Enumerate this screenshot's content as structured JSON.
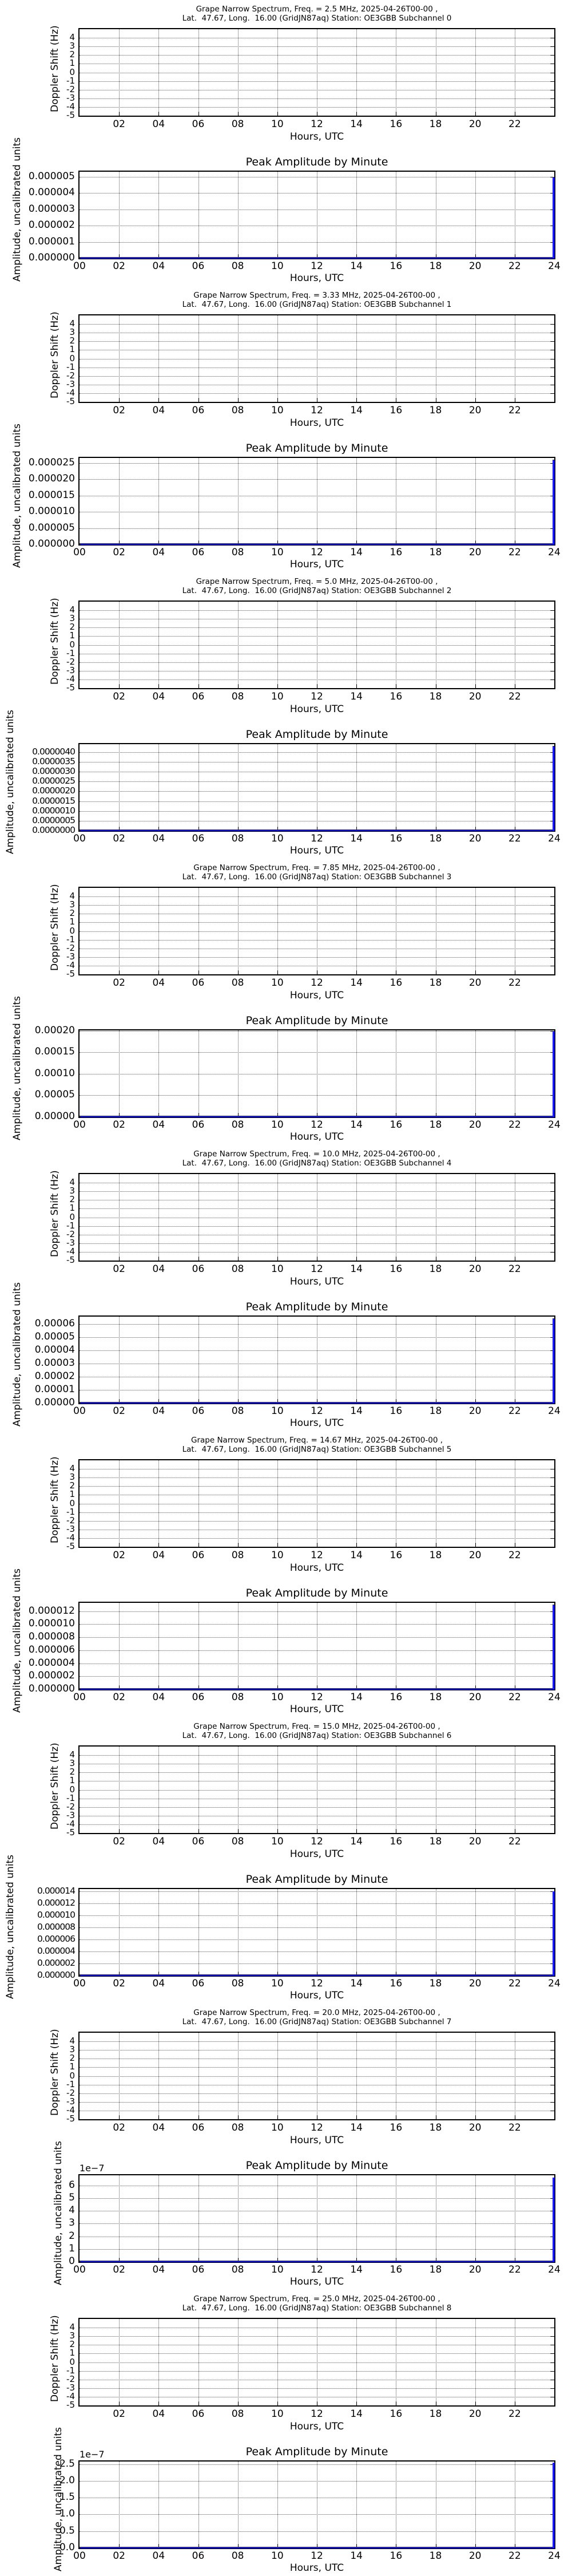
{
  "common": {
    "location_line": "Lat.  47.67, Long.  16.00 (GridJN87aq) Station: OE3GBB Subchannel ",
    "doppler_ylabel": "Doppler Shift (Hz)",
    "amp_ylabel": "Amplitude, uncalibrated units",
    "amp_title": "Peak Amplitude by Minute",
    "xlabel": "Hours, UTC",
    "doppler_xticks": [
      "02",
      "04",
      "06",
      "08",
      "10",
      "12",
      "14",
      "16",
      "18",
      "20",
      "22"
    ],
    "amp_xticks": [
      "00",
      "02",
      "04",
      "06",
      "08",
      "10",
      "12",
      "14",
      "16",
      "18",
      "20",
      "22",
      "24"
    ],
    "doppler_yticks": [
      "4",
      "3",
      "2",
      "1",
      "0",
      "-1",
      "-2",
      "-3",
      "-4",
      "-5"
    ],
    "line_color": "#1a1aff"
  },
  "panels": [
    {
      "title_line1": "Grape Narrow Spectrum, Freq. = 2.5 MHz, 2025-04-26T00-00 ,",
      "title_line2": "Lat.  47.67, Long.  16.00 (GridJN87aq) Station: OE3GBB Subchannel 0",
      "amp_yticks": [
        "0.000005",
        "0.000004",
        "0.000003",
        "0.000002",
        "0.000001",
        "0.000000"
      ],
      "amp_offset": "",
      "amp_ymax": 5.3e-06,
      "amp_peak": 5e-06
    },
    {
      "title_line1": "Grape Narrow Spectrum, Freq. = 3.33 MHz, 2025-04-26T00-00 ,",
      "title_line2": "Lat.  47.67, Long.  16.00 (GridJN87aq) Station: OE3GBB Subchannel 1",
      "amp_yticks": [
        "0.000025",
        "0.000020",
        "0.000015",
        "0.000010",
        "0.000005",
        "0.000000"
      ],
      "amp_offset": "",
      "amp_ymax": 2.65e-05,
      "amp_peak": 2.6e-05
    },
    {
      "title_line1": "Grape Narrow Spectrum, Freq. = 5.0 MHz, 2025-04-26T00-00 ,",
      "title_line2": "Lat.  47.67, Long.  16.00 (GridJN87aq) Station: OE3GBB Subchannel 2",
      "amp_yticks": [
        "0.0000040",
        "0.0000035",
        "0.0000030",
        "0.0000025",
        "0.0000020",
        "0.0000015",
        "0.0000010",
        "0.0000005",
        "0.0000000"
      ],
      "amp_offset": "",
      "amp_ymax": 4.4e-06,
      "amp_peak": 4.3e-06
    },
    {
      "title_line1": "Grape Narrow Spectrum, Freq. = 7.85 MHz, 2025-04-26T00-00 ,",
      "title_line2": "Lat.  47.67, Long.  16.00 (GridJN87aq) Station: OE3GBB Subchannel 3",
      "amp_yticks": [
        "0.00020",
        "0.00015",
        "0.00010",
        "0.00005",
        "0.00000"
      ],
      "amp_offset": "",
      "amp_ymax": 0.000201,
      "amp_peak": 0.0002
    },
    {
      "title_line1": "Grape Narrow Spectrum, Freq. = 10.0 MHz, 2025-04-26T00-00 ,",
      "title_line2": "Lat.  47.67, Long.  16.00 (GridJN87aq) Station: OE3GBB Subchannel 4",
      "amp_yticks": [
        "0.00006",
        "0.00005",
        "0.00004",
        "0.00003",
        "0.00002",
        "0.00001",
        "0.00000"
      ],
      "amp_offset": "",
      "amp_ymax": 6.55e-05,
      "amp_peak": 6.4e-05
    },
    {
      "title_line1": "Grape Narrow Spectrum, Freq. = 14.67 MHz, 2025-04-26T00-00 ,",
      "title_line2": "Lat.  47.67, Long.  16.00 (GridJN87aq) Station: OE3GBB Subchannel 5",
      "amp_yticks": [
        "0.000012",
        "0.000010",
        "0.000008",
        "0.000006",
        "0.000004",
        "0.000002",
        "0.000000"
      ],
      "amp_offset": "",
      "amp_ymax": 1.33e-05,
      "amp_peak": 1.3e-05
    },
    {
      "title_line1": "Grape Narrow Spectrum, Freq. = 15.0 MHz, 2025-04-26T00-00 ,",
      "title_line2": "Lat.  47.67, Long.  16.00 (GridJN87aq) Station: OE3GBB Subchannel 6",
      "amp_yticks": [
        "0.000014",
        "0.000012",
        "0.000010",
        "0.000008",
        "0.000006",
        "0.000004",
        "0.000002",
        "0.000000"
      ],
      "amp_offset": "",
      "amp_ymax": 1.44e-05,
      "amp_peak": 1.4e-05
    },
    {
      "title_line1": "Grape Narrow Spectrum, Freq. = 20.0 MHz, 2025-04-26T00-00 ,",
      "title_line2": "Lat.  47.67, Long.  16.00 (GridJN87aq) Station: OE3GBB Subchannel 7",
      "amp_yticks": [
        "6",
        "5",
        "4",
        "3",
        "2",
        "1",
        "0"
      ],
      "amp_offset": "1e−7",
      "amp_ymax": 6.8,
      "amp_peak": 6.6
    },
    {
      "title_line1": "Grape Narrow Spectrum, Freq. = 25.0 MHz, 2025-04-26T00-00 ,",
      "title_line2": "Lat.  47.67, Long.  16.00 (GridJN87aq) Station: OE3GBB Subchannel 8",
      "amp_yticks": [
        "2.5",
        "2.0",
        "1.5",
        "1.0",
        "0.5",
        "0.0"
      ],
      "amp_offset": "1e−7",
      "amp_ymax": 2.58,
      "amp_peak": 2.55
    }
  ],
  "chart_data": [
    {
      "type": "line",
      "title": "Grape Narrow Spectrum, Freq. = 2.5 MHz, 2025-04-26T00-00 , Subchannel 0",
      "xlabel": "Hours, UTC",
      "ylabel": "Doppler Shift (Hz)",
      "ylim": [
        -5,
        5
      ],
      "xlim": [
        0,
        24
      ],
      "series": [],
      "grid": true
    },
    {
      "type": "line",
      "title": "Peak Amplitude by Minute (2.5 MHz)",
      "xlabel": "Hours, UTC",
      "ylabel": "Amplitude, uncalibrated units",
      "xlim": [
        0,
        24
      ],
      "ylim": [
        0,
        5.3e-06
      ],
      "x": [
        0,
        23.98,
        24
      ],
      "series": [
        {
          "name": "peak amplitude",
          "values": [
            0,
            0,
            5e-06
          ]
        }
      ],
      "grid": true
    },
    {
      "type": "line",
      "title": "Grape Narrow Spectrum, Freq. = 3.33 MHz, 2025-04-26T00-00 , Subchannel 1",
      "xlabel": "Hours, UTC",
      "ylabel": "Doppler Shift (Hz)",
      "ylim": [
        -5,
        5
      ],
      "xlim": [
        0,
        24
      ],
      "series": [],
      "grid": true
    },
    {
      "type": "line",
      "title": "Peak Amplitude by Minute (3.33 MHz)",
      "xlabel": "Hours, UTC",
      "ylabel": "Amplitude, uncalibrated units",
      "xlim": [
        0,
        24
      ],
      "ylim": [
        0,
        2.65e-05
      ],
      "x": [
        0,
        23.98,
        24
      ],
      "series": [
        {
          "name": "peak amplitude",
          "values": [
            0,
            0,
            2.6e-05
          ]
        }
      ],
      "grid": true
    },
    {
      "type": "line",
      "title": "Grape Narrow Spectrum, Freq. = 5.0 MHz, 2025-04-26T00-00 , Subchannel 2",
      "xlabel": "Hours, UTC",
      "ylabel": "Doppler Shift (Hz)",
      "ylim": [
        -5,
        5
      ],
      "xlim": [
        0,
        24
      ],
      "series": [],
      "grid": true
    },
    {
      "type": "line",
      "title": "Peak Amplitude by Minute (5.0 MHz)",
      "xlabel": "Hours, UTC",
      "ylabel": "Amplitude, uncalibrated units",
      "xlim": [
        0,
        24
      ],
      "ylim": [
        0,
        4.4e-06
      ],
      "x": [
        0,
        23.98,
        24
      ],
      "series": [
        {
          "name": "peak amplitude",
          "values": [
            0,
            0,
            4.3e-06
          ]
        }
      ],
      "grid": true
    },
    {
      "type": "line",
      "title": "Grape Narrow Spectrum, Freq. = 7.85 MHz, 2025-04-26T00-00 , Subchannel 3",
      "xlabel": "Hours, UTC",
      "ylabel": "Doppler Shift (Hz)",
      "ylim": [
        -5,
        5
      ],
      "xlim": [
        0,
        24
      ],
      "series": [],
      "grid": true
    },
    {
      "type": "line",
      "title": "Peak Amplitude by Minute (7.85 MHz)",
      "xlabel": "Hours, UTC",
      "ylabel": "Amplitude, uncalibrated units",
      "xlim": [
        0,
        24
      ],
      "ylim": [
        0,
        0.000201
      ],
      "x": [
        0,
        23.98,
        24
      ],
      "series": [
        {
          "name": "peak amplitude",
          "values": [
            0,
            0,
            0.0002
          ]
        }
      ],
      "grid": true
    },
    {
      "type": "line",
      "title": "Grape Narrow Spectrum, Freq. = 10.0 MHz, 2025-04-26T00-00 , Subchannel 4",
      "xlabel": "Hours, UTC",
      "ylabel": "Doppler Shift (Hz)",
      "ylim": [
        -5,
        5
      ],
      "xlim": [
        0,
        24
      ],
      "series": [],
      "grid": true
    },
    {
      "type": "line",
      "title": "Peak Amplitude by Minute (10.0 MHz)",
      "xlabel": "Hours, UTC",
      "ylabel": "Amplitude, uncalibrated units",
      "xlim": [
        0,
        24
      ],
      "ylim": [
        0,
        6.55e-05
      ],
      "x": [
        0,
        23.98,
        24
      ],
      "series": [
        {
          "name": "peak amplitude",
          "values": [
            0,
            0,
            6.4e-05
          ]
        }
      ],
      "grid": true
    },
    {
      "type": "line",
      "title": "Grape Narrow Spectrum, Freq. = 14.67 MHz, 2025-04-26T00-00 , Subchannel 5",
      "xlabel": "Hours, UTC",
      "ylabel": "Doppler Shift (Hz)",
      "ylim": [
        -5,
        5
      ],
      "xlim": [
        0,
        24
      ],
      "series": [],
      "grid": true
    },
    {
      "type": "line",
      "title": "Peak Amplitude by Minute (14.67 MHz)",
      "xlabel": "Hours, UTC",
      "ylabel": "Amplitude, uncalibrated units",
      "xlim": [
        0,
        24
      ],
      "ylim": [
        0,
        1.33e-05
      ],
      "x": [
        0,
        23.98,
        24
      ],
      "series": [
        {
          "name": "peak amplitude",
          "values": [
            0,
            0,
            1.3e-05
          ]
        }
      ],
      "grid": true
    },
    {
      "type": "line",
      "title": "Grape Narrow Spectrum, Freq. = 15.0 MHz, 2025-04-26T00-00 , Subchannel 6",
      "xlabel": "Hours, UTC",
      "ylabel": "Doppler Shift (Hz)",
      "ylim": [
        -5,
        5
      ],
      "xlim": [
        0,
        24
      ],
      "series": [],
      "grid": true
    },
    {
      "type": "line",
      "title": "Peak Amplitude by Minute (15.0 MHz)",
      "xlabel": "Hours, UTC",
      "ylabel": "Amplitude, uncalibrated units",
      "xlim": [
        0,
        24
      ],
      "ylim": [
        0,
        1.44e-05
      ],
      "x": [
        0,
        23.98,
        24
      ],
      "series": [
        {
          "name": "peak amplitude",
          "values": [
            0,
            0,
            1.4e-05
          ]
        }
      ],
      "grid": true
    },
    {
      "type": "line",
      "title": "Grape Narrow Spectrum, Freq. = 20.0 MHz, 2025-04-26T00-00 , Subchannel 7",
      "xlabel": "Hours, UTC",
      "ylabel": "Doppler Shift (Hz)",
      "ylim": [
        -5,
        5
      ],
      "xlim": [
        0,
        24
      ],
      "series": [],
      "grid": true
    },
    {
      "type": "line",
      "title": "Peak Amplitude by Minute (20.0 MHz)",
      "xlabel": "Hours, UTC",
      "ylabel": "Amplitude, uncalibrated units (1e-7)",
      "xlim": [
        0,
        24
      ],
      "ylim": [
        0,
        6.8e-07
      ],
      "x": [
        0,
        23.98,
        24
      ],
      "series": [
        {
          "name": "peak amplitude",
          "values": [
            0,
            0,
            6.6e-07
          ]
        }
      ],
      "grid": true
    },
    {
      "type": "line",
      "title": "Grape Narrow Spectrum, Freq. = 25.0 MHz, 2025-04-26T00-00 , Subchannel 8",
      "xlabel": "Hours, UTC",
      "ylabel": "Doppler Shift (Hz)",
      "ylim": [
        -5,
        5
      ],
      "xlim": [
        0,
        24
      ],
      "series": [],
      "grid": true
    },
    {
      "type": "line",
      "title": "Peak Amplitude by Minute (25.0 MHz)",
      "xlabel": "Hours, UTC",
      "ylabel": "Amplitude, uncalibrated units (1e-7)",
      "xlim": [
        0,
        24
      ],
      "ylim": [
        0,
        2.58e-07
      ],
      "x": [
        0,
        23.98,
        24
      ],
      "series": [
        {
          "name": "peak amplitude",
          "values": [
            0,
            0,
            2.55e-07
          ]
        }
      ],
      "grid": true
    }
  ]
}
